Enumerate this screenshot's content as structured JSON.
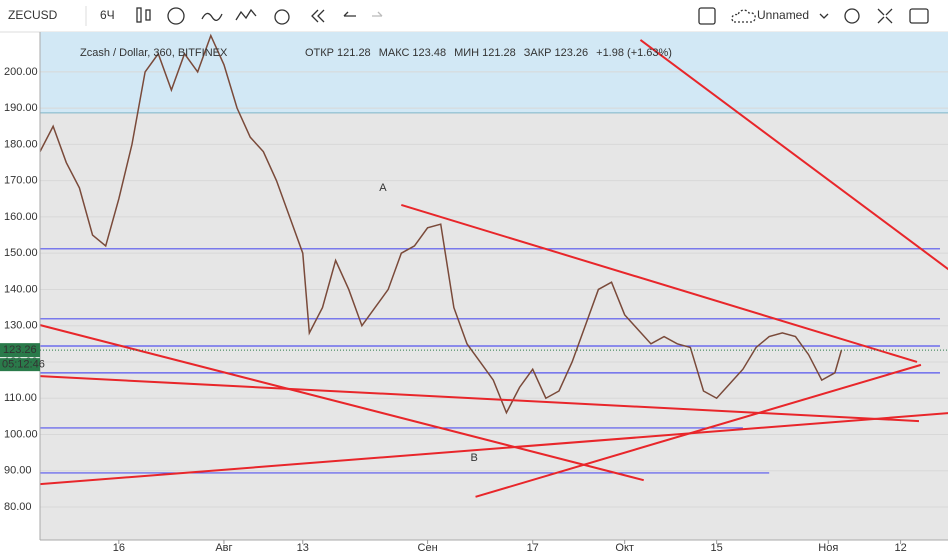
{
  "toolbar": {
    "symbol": "ZECUSD",
    "interval": "6Ч",
    "layout": "Unnamed"
  },
  "chart_data": {
    "type": "line",
    "title": "Zcash / Dollar, 360, BITFINEX",
    "ohlc": [
      {
        "label": "ОТКР",
        "value": "121.28"
      },
      {
        "label": "МАКС",
        "value": "123.48"
      },
      {
        "label": "МИН",
        "value": "121.28"
      },
      {
        "label": "ЗАКР",
        "value": "123.26"
      }
    ],
    "change": "+1.98 (+1.63%)",
    "last_price": {
      "value": 123.26,
      "label": "123.26"
    },
    "countdown": "05:12:46",
    "x": [
      3,
      5,
      7,
      9,
      11,
      13,
      15,
      17,
      19,
      21,
      23,
      25,
      27,
      29,
      31,
      33,
      35,
      37,
      39,
      41,
      43,
      44,
      46,
      48,
      50,
      52,
      54,
      56,
      58,
      60,
      62,
      64,
      66,
      68,
      70,
      72,
      74,
      76,
      78,
      80,
      82,
      84,
      86,
      88,
      90,
      92,
      94,
      96,
      98,
      100,
      102,
      104,
      106,
      108,
      110,
      112,
      114,
      116,
      118,
      120,
      122,
      124,
      125
    ],
    "series": [
      {
        "name": "ZECUSD",
        "color": "#7a4a3a",
        "values": [
          178,
          185,
          175,
          168,
          155,
          152,
          165,
          180,
          200,
          205,
          195,
          205,
          200,
          210,
          202,
          190,
          182,
          178,
          170,
          160,
          150,
          128,
          135,
          148,
          140,
          130,
          135,
          140,
          150,
          152,
          157,
          158,
          135,
          125,
          120,
          115,
          106,
          113,
          118,
          110,
          112,
          120,
          130,
          140,
          142,
          133,
          129,
          125,
          127,
          125,
          124,
          112,
          110,
          114,
          118,
          124,
          127,
          128,
          127,
          122,
          115,
          117,
          123.26
        ]
      }
    ],
    "xlim": [
      3,
      140
    ],
    "ylim": [
      70.9,
      211
    ],
    "xticks": [
      {
        "value": 15,
        "label": "16"
      },
      {
        "value": 31,
        "label": "Авг"
      },
      {
        "value": 43,
        "label": "13"
      },
      {
        "value": 62,
        "label": "Сен"
      },
      {
        "value": 78,
        "label": "17"
      },
      {
        "value": 92,
        "label": "Окт"
      },
      {
        "value": 106,
        "label": "15"
      },
      {
        "value": 123,
        "label": "Ноя"
      },
      {
        "value": 134,
        "label": "12"
      }
    ],
    "yticks": [
      {
        "value": 80,
        "label": "80.00"
      },
      {
        "value": 90,
        "label": "90.00"
      },
      {
        "value": 100,
        "label": "100.00"
      },
      {
        "value": 110,
        "label": "110.00"
      },
      {
        "value": 120,
        "label": "120.00"
      },
      {
        "value": 130,
        "label": "130.00"
      },
      {
        "value": 140,
        "label": "140.00"
      },
      {
        "value": 150,
        "label": "150.00"
      },
      {
        "value": 160,
        "label": "160.00"
      },
      {
        "value": 170,
        "label": "170.00"
      },
      {
        "value": 180,
        "label": "180.00"
      },
      {
        "value": 190,
        "label": "190.00"
      },
      {
        "value": 200,
        "label": "200.00"
      }
    ],
    "zone_from": 188.7,
    "levels": [
      {
        "value": 151.2,
        "to": 140
      },
      {
        "value": 131.9,
        "to": 140
      },
      {
        "value": 124.4,
        "to": 140
      },
      {
        "value": 117,
        "to": 140
      },
      {
        "value": 101.8,
        "to": 110
      },
      {
        "value": 89.4,
        "to": 114
      }
    ],
    "trendlines": [
      [
        58.0,
        163.3,
        136.5,
        120.0
      ],
      [
        2.95,
        130.2,
        94.9,
        87.4
      ],
      [
        2.95,
        116.1,
        136.8,
        103.7
      ],
      [
        2.95,
        86.3,
        141.4,
        105.9
      ],
      [
        69.3,
        82.8,
        137.1,
        119.2
      ],
      [
        94.4,
        208.8,
        141.4,
        145.4
      ]
    ],
    "annotations": [
      {
        "text": "A",
        "x": 55.2,
        "y": 168
      },
      {
        "text": "B",
        "x": 69.1,
        "y": 93.5
      }
    ]
  }
}
